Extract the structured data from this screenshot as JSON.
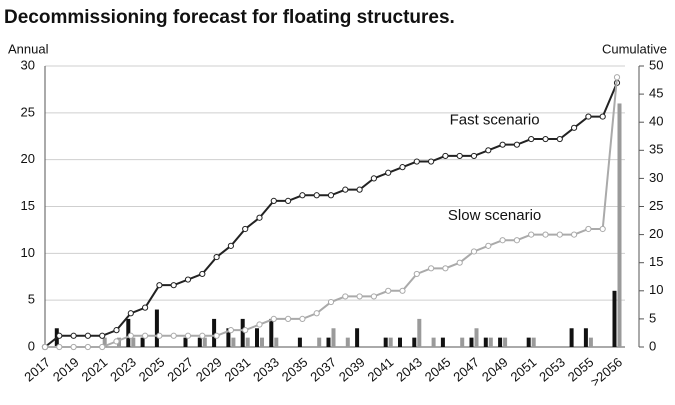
{
  "chart_data": {
    "type": "bar_line",
    "title": "Decommissioning forecast for floating structures.",
    "ylabel": "Annual",
    "y2label": "Cumulative",
    "categories": [
      "2017",
      null,
      "2019",
      null,
      "2021",
      null,
      "2023",
      null,
      "2025",
      null,
      "2027",
      null,
      "2029",
      null,
      "2031",
      null,
      "2033",
      null,
      "2035",
      null,
      "2037",
      null,
      "2039",
      null,
      "2041",
      null,
      "2043",
      null,
      "2045",
      null,
      "2047",
      null,
      "2049",
      null,
      "2051",
      null,
      "2053",
      null,
      "2055",
      null,
      ">2056"
    ],
    "ylim": [
      0,
      30
    ],
    "yticks": [
      0,
      5,
      10,
      15,
      20,
      25,
      30
    ],
    "y2lim": [
      0,
      50
    ],
    "y2ticks": [
      0,
      5,
      10,
      15,
      20,
      25,
      30,
      35,
      40,
      45,
      50
    ],
    "grid": true,
    "series": [
      {
        "kind": "bar",
        "color": "#111111",
        "values": [
          0,
          2,
          0,
          0,
          0,
          0,
          3,
          1,
          4,
          0,
          1,
          1,
          3,
          2,
          3,
          2,
          3,
          0,
          1,
          0,
          1,
          0,
          2,
          0,
          1,
          1,
          1,
          0,
          1,
          0,
          1,
          1,
          1,
          0,
          1,
          0,
          0,
          2,
          2,
          0,
          6
        ]
      },
      {
        "kind": "bar",
        "color": "#9a9a9a",
        "values": [
          0,
          0,
          0,
          0,
          1,
          1,
          1,
          0,
          0,
          0,
          0,
          1,
          0,
          1,
          1,
          1,
          1,
          0,
          0,
          1,
          2,
          1,
          0,
          0,
          1,
          0,
          3,
          1,
          0,
          1,
          2,
          1,
          1,
          0,
          1,
          0,
          0,
          0,
          1,
          0,
          26
        ]
      },
      {
        "kind": "line",
        "name": "Fast scenario",
        "color": "#222222",
        "axis": "y2",
        "values": [
          0,
          2,
          2,
          2,
          2,
          3,
          6,
          7,
          11,
          11,
          12,
          13,
          16,
          18,
          21,
          23,
          26,
          26,
          27,
          27,
          27,
          28,
          28,
          30,
          31,
          32,
          33,
          33,
          34,
          34,
          34,
          35,
          36,
          36,
          37,
          37,
          37,
          39,
          41,
          41,
          47
        ]
      },
      {
        "kind": "line",
        "name": "Slow scenario",
        "color": "#aaaaaa",
        "axis": "y2",
        "values": [
          0,
          0,
          0,
          0,
          0,
          1,
          2,
          2,
          2,
          2,
          2,
          2,
          2,
          3,
          3,
          4,
          5,
          5,
          5,
          6,
          8,
          9,
          9,
          9,
          10,
          10,
          13,
          14,
          14,
          15,
          17,
          18,
          19,
          19,
          20,
          20,
          20,
          20,
          21,
          21,
          48
        ]
      }
    ]
  }
}
